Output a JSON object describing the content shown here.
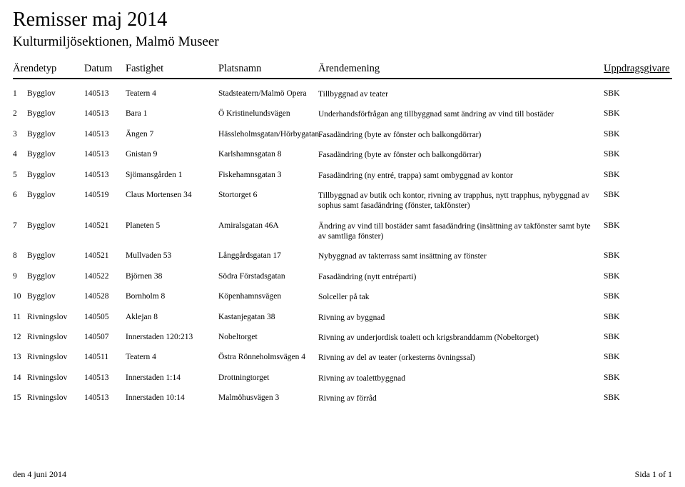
{
  "title": "Remisser maj 2014",
  "subtitle": "Kulturmiljösektionen, Malmö Museer",
  "columns": {
    "type": "Ärendetyp",
    "date": "Datum",
    "property": "Fastighet",
    "place": "Platsnamn",
    "desc": "Ärendemening",
    "source": "Uppdragsgivare"
  },
  "rows": [
    {
      "idx": "1",
      "type": "Bygglov",
      "date": "140513",
      "property": "Teatern 4",
      "place": "Stadsteatern/Malmö Opera",
      "desc": "Tillbyggnad av teater",
      "source": "SBK"
    },
    {
      "idx": "2",
      "type": "Bygglov",
      "date": "140513",
      "property": "Bara 1",
      "place": "Ö Kristinelundsvägen",
      "desc": "Underhandsförfrågan ang tillbyggnad samt ändring av vind till bostäder",
      "source": "SBK"
    },
    {
      "idx": "3",
      "type": "Bygglov",
      "date": "140513",
      "property": "Ängen 7",
      "place": "Hässleholmsgatan/Hörbygatan",
      "desc": "Fasadändring (byte av fönster och balkongdörrar)",
      "source": "SBK"
    },
    {
      "idx": "4",
      "type": "Bygglov",
      "date": "140513",
      "property": "Gnistan 9",
      "place": "Karlshamnsgatan 8",
      "desc": "Fasadändring (byte av fönster och balkongdörrar)",
      "source": "SBK"
    },
    {
      "idx": "5",
      "type": "Bygglov",
      "date": "140513",
      "property": "Sjömansgården 1",
      "place": "Fiskehamnsgatan 3",
      "desc": "Fasadändring (ny entré, trappa) samt ombyggnad av kontor",
      "source": "SBK"
    },
    {
      "idx": "6",
      "type": "Bygglov",
      "date": "140519",
      "property": "Claus Mortensen 34",
      "place": "Stortorget 6",
      "desc": "Tillbyggnad av butik och kontor, rivning av trapphus, nytt trapphus, nybyggnad av sophus samt fasadändring (fönster, takfönster)",
      "source": "SBK"
    },
    {
      "idx": "7",
      "type": "Bygglov",
      "date": "140521",
      "property": "Planeten 5",
      "place": "Amiralsgatan 46A",
      "desc": "Ändring av vind till bostäder samt fasadändring (insättning av takfönster samt byte av samtliga fönster)",
      "source": "SBK"
    },
    {
      "idx": "8",
      "type": "Bygglov",
      "date": "140521",
      "property": "Mullvaden 53",
      "place": "Långgårdsgatan 17",
      "desc": "Nybyggnad av takterrass samt insättning av fönster",
      "source": "SBK"
    },
    {
      "idx": "9",
      "type": "Bygglov",
      "date": "140522",
      "property": "Björnen 38",
      "place": "Södra Förstadsgatan",
      "desc": "Fasadändring (nytt entréparti)",
      "source": "SBK"
    },
    {
      "idx": "10",
      "type": "Bygglov",
      "date": "140528",
      "property": "Bornholm 8",
      "place": "Köpenhamnsvägen",
      "desc": "Solceller på tak",
      "source": "SBK"
    },
    {
      "idx": "11",
      "type": "Rivningslov",
      "date": "140505",
      "property": "Aklejan 8",
      "place": "Kastanjegatan 38",
      "desc": "Rivning av byggnad",
      "source": "SBK"
    },
    {
      "idx": "12",
      "type": "Rivningslov",
      "date": "140507",
      "property": "Innerstaden 120:213",
      "place": "Nobeltorget",
      "desc": "Rivning av underjordisk toalett och krigsbranddamm (Nobeltorget)",
      "source": "SBK"
    },
    {
      "idx": "13",
      "type": "Rivningslov",
      "date": "140511",
      "property": "Teatern 4",
      "place": "Östra Rönneholmsvägen 4",
      "desc": "Rivning av del av teater (orkesterns övningssal)",
      "source": "SBK"
    },
    {
      "idx": "14",
      "type": "Rivningslov",
      "date": "140513",
      "property": "Innerstaden 1:14",
      "place": "Drottningtorget",
      "desc": "Rivning av toalettbyggnad",
      "source": "SBK"
    },
    {
      "idx": "15",
      "type": "Rivningslov",
      "date": "140513",
      "property": "Innerstaden 10:14",
      "place": "Malmöhusvägen 3",
      "desc": "Rivning av förråd",
      "source": "SBK"
    }
  ],
  "footer": {
    "date": "den 4 juni 2014",
    "page": "Sida 1 of 1"
  }
}
